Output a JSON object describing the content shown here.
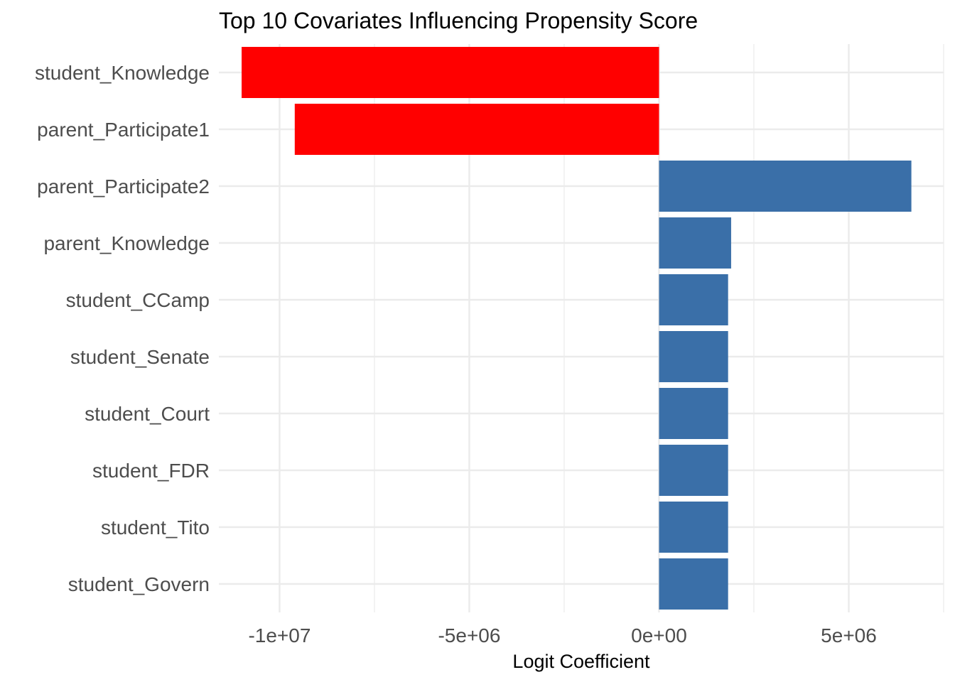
{
  "chart_data": {
    "type": "bar",
    "orientation": "horizontal",
    "title": "Top 10 Covariates Influencing Propensity Score",
    "xlabel": "Logit Coefficient",
    "ylabel": "",
    "categories": [
      "student_Knowledge",
      "parent_Participate1",
      "parent_Participate2",
      "parent_Knowledge",
      "student_CCamp",
      "student_Senate",
      "student_Court",
      "student_FDR",
      "student_Tito",
      "student_Govern"
    ],
    "values": [
      -11000000,
      -9600000,
      6650000,
      1900000,
      1820000,
      1820000,
      1820000,
      1820000,
      1820000,
      1820000
    ],
    "xlim": [
      -11600000,
      7500000
    ],
    "xticks": [
      -10000000,
      -5000000,
      0,
      5000000
    ],
    "xtick_labels": [
      "-1e+07",
      "-5e+06",
      "0e+00",
      "5e+06"
    ],
    "minor_xticks": [
      -7500000,
      -2500000,
      2500000,
      7500000
    ],
    "colors": {
      "negative": "#ff0000",
      "positive": "#3a6fa8",
      "grid": "#ebebeb"
    },
    "grid": true,
    "legend": "none"
  }
}
